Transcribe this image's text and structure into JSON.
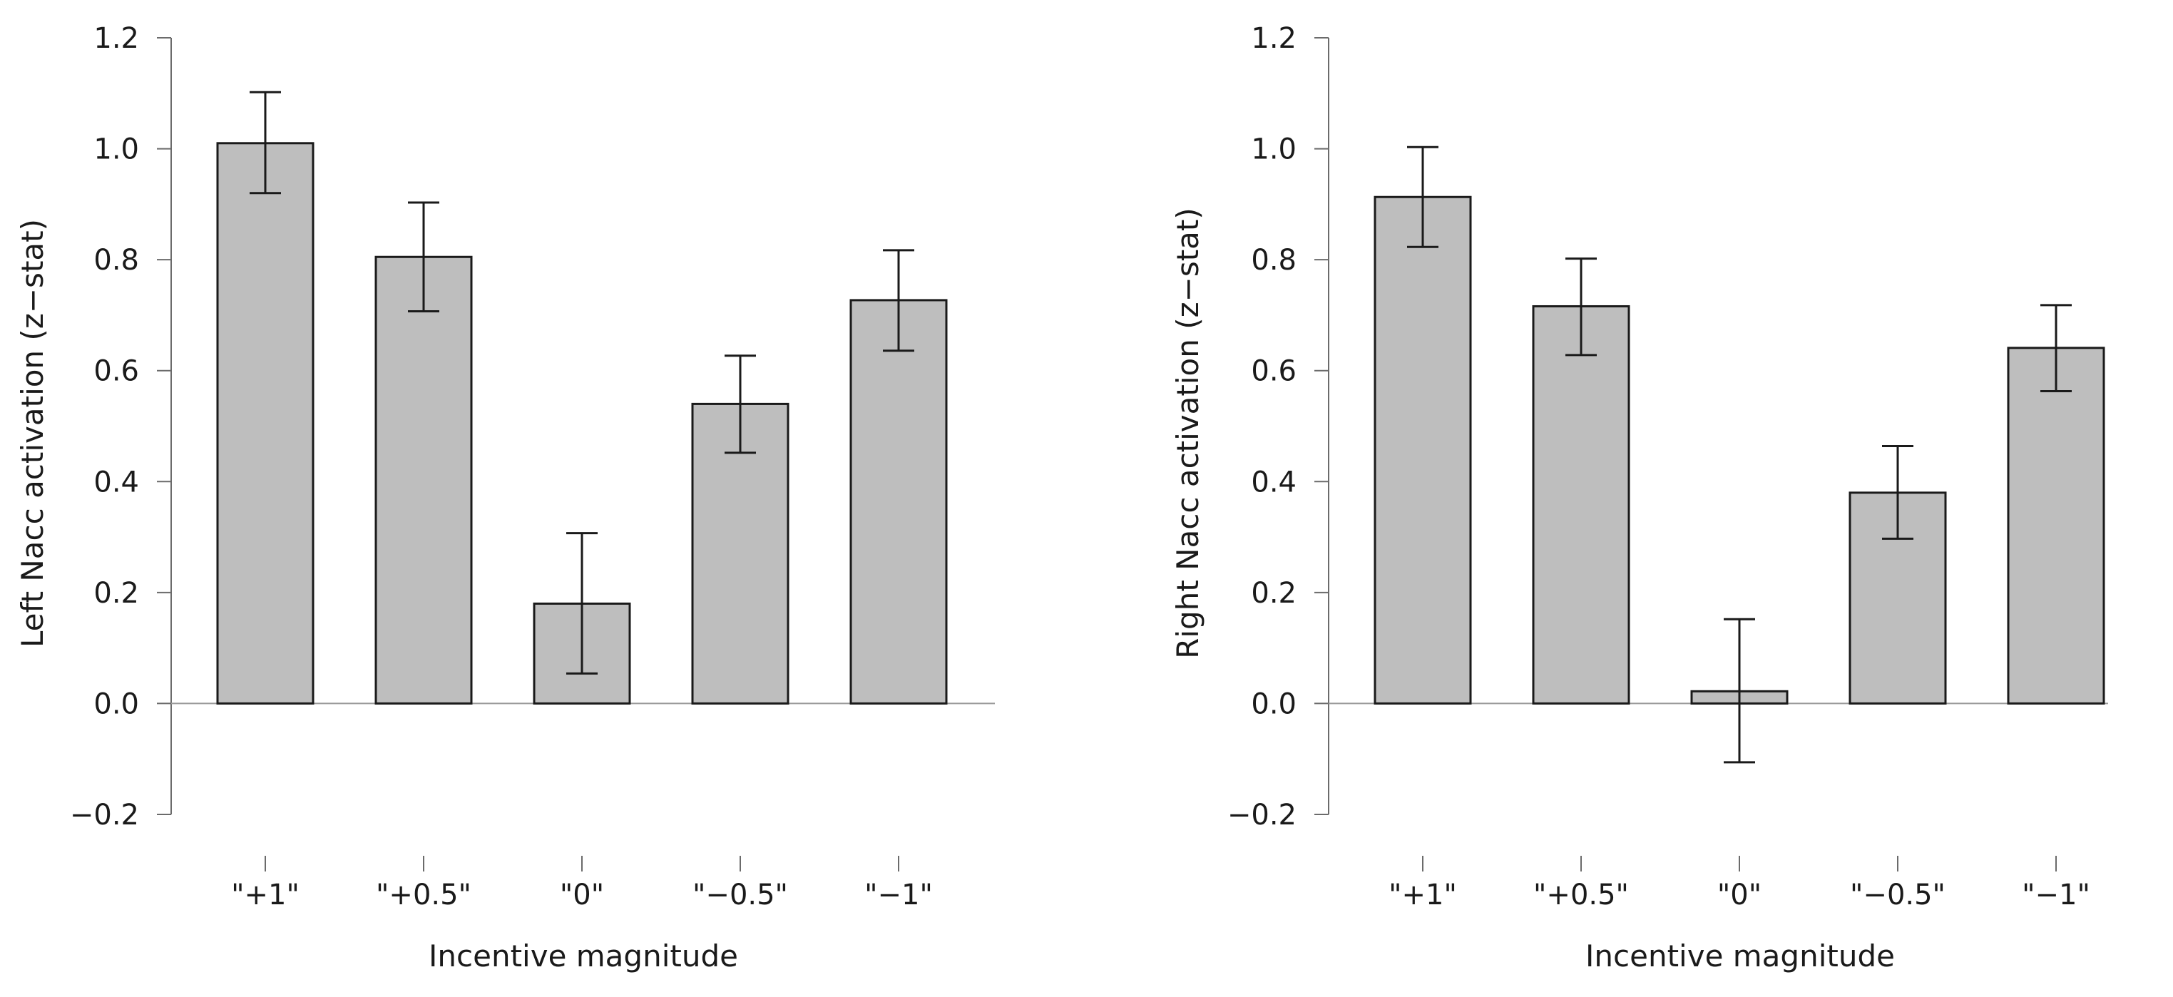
{
  "chart_data": [
    {
      "type": "bar",
      "categories": [
        "\"+1\"",
        "\"+0.5\"",
        "\"0\"",
        "\"−0.5\"",
        "\"−1\""
      ],
      "values": [
        1.01,
        0.805,
        0.18,
        0.54,
        0.727
      ],
      "error_low": [
        0.92,
        0.707,
        0.054,
        0.452,
        0.636
      ],
      "error_high": [
        1.102,
        0.903,
        0.307,
        0.627,
        0.817
      ],
      "xlabel": "Incentive magnitude",
      "ylabel": "Left Nacc activation (z−stat)",
      "ylim": [
        -0.2,
        1.2
      ],
      "yticks": [
        1.2,
        1.0,
        0.8,
        0.6,
        0.4,
        0.2,
        0.0,
        -0.2
      ],
      "ytick_labels": [
        "1.2",
        "1.0",
        "0.8",
        "0.6",
        "0.4",
        "0.2",
        "0.0",
        "−0.2"
      ],
      "grid": false
    },
    {
      "type": "bar",
      "categories": [
        "\"+1\"",
        "\"+0.5\"",
        "\"0\"",
        "\"−0.5\"",
        "\"−1\""
      ],
      "values": [
        0.913,
        0.716,
        0.022,
        0.38,
        0.641
      ],
      "error_low": [
        0.823,
        0.628,
        -0.106,
        0.297,
        0.563
      ],
      "error_high": [
        1.003,
        0.802,
        0.152,
        0.464,
        0.718
      ],
      "xlabel": "Incentive magnitude",
      "ylabel": "Right Nacc activation (z−stat)",
      "ylim": [
        -0.2,
        1.2
      ],
      "yticks": [
        1.2,
        1.0,
        0.8,
        0.6,
        0.4,
        0.2,
        0.0,
        -0.2
      ],
      "ytick_labels": [
        "1.2",
        "1.0",
        "0.8",
        "0.6",
        "0.4",
        "0.2",
        "0.0",
        "−0.2"
      ],
      "grid": false
    }
  ]
}
